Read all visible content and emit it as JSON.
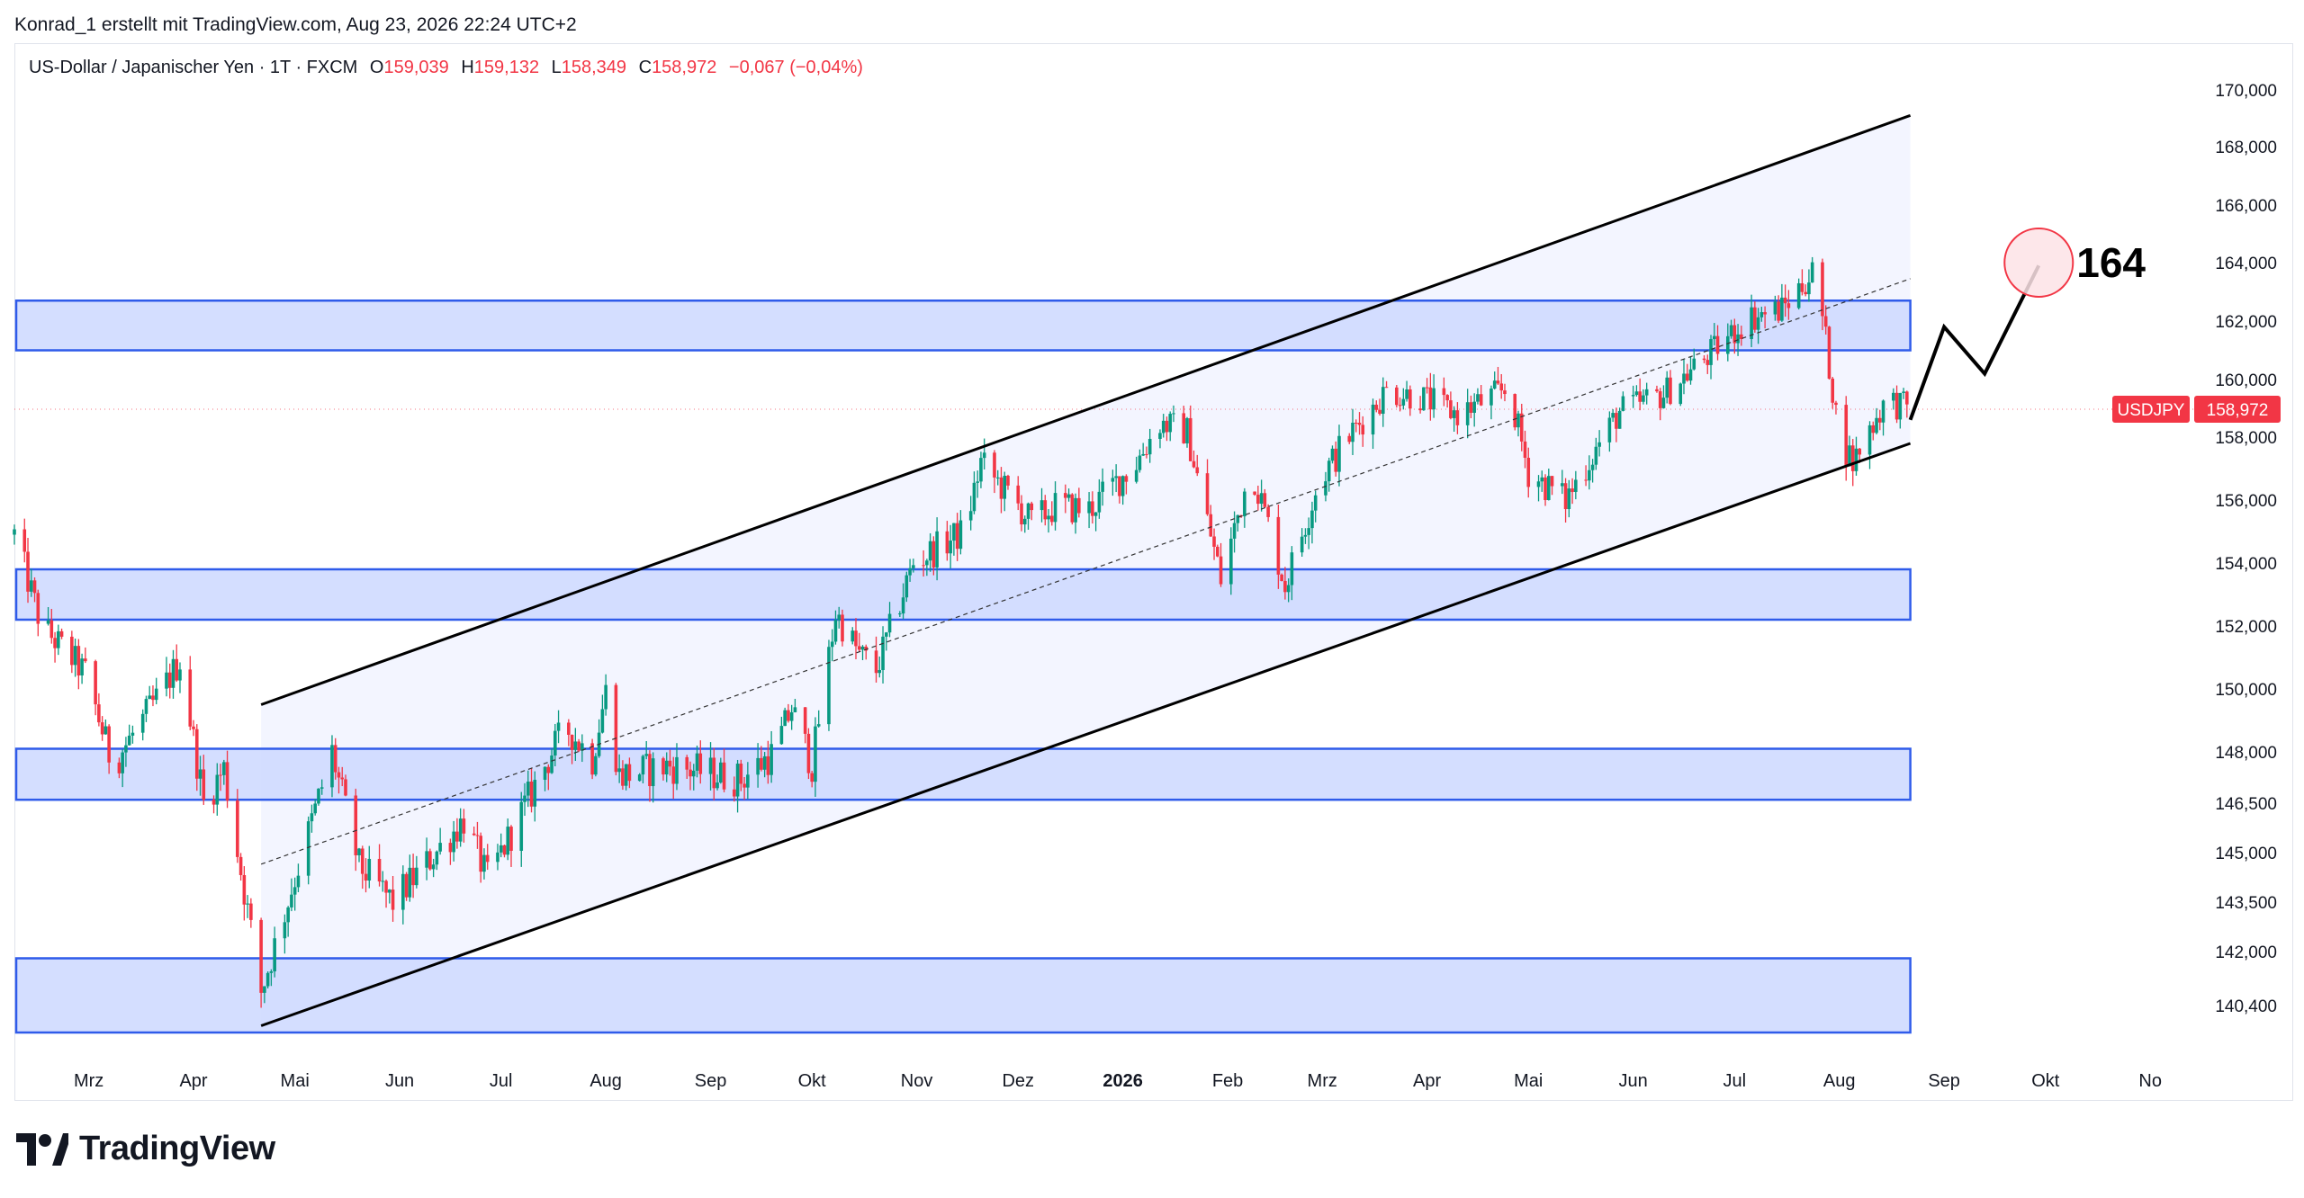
{
  "header": {
    "byline": "Konrad_1 erstellt mit TradingView.com, Aug 23, 2026 22:24 UTC+2"
  },
  "legend": {
    "symbol": "US-Dollar / Japanischer Yen · 1T · FXCM",
    "open_label": "O",
    "open": "159,039",
    "high_label": "H",
    "high": "159,132",
    "low_label": "L",
    "low": "158,349",
    "close_label": "C",
    "close": "158,972",
    "change": "−0,067 (−0,04%)"
  },
  "brand": {
    "name": "TradingView"
  },
  "colors": {
    "up": "#089981",
    "down": "#f23645",
    "zone_fill": "#cdd8ff",
    "zone_border": "#2f5bea",
    "channel_fill": "#f3f5ff",
    "price_tag": "#f23645"
  },
  "chart_data": {
    "type": "candlestick",
    "symbol": "USDJPY",
    "last_price": "158,972",
    "y_ticks": [
      "170,000",
      "168,000",
      "166,000",
      "164,000",
      "162,000",
      "160,000",
      "158,000",
      "156,000",
      "154,000",
      "152,000",
      "150,000",
      "148,000",
      "146,500",
      "145,000",
      "143,500",
      "142,000",
      "140,400"
    ],
    "x_ticks": [
      "Mrz",
      "Apr",
      "Mai",
      "Jun",
      "Jul",
      "Aug",
      "Sep",
      "Okt",
      "Nov",
      "Dez",
      "2026",
      "Feb",
      "Mrz",
      "Apr",
      "Mai",
      "Jun",
      "Jul",
      "Aug",
      "Sep",
      "Okt",
      "No"
    ],
    "x_range": [
      "2025-02-07",
      "2026-11-14"
    ],
    "price_path": [
      [
        "2025-02-07",
        154.9
      ],
      [
        "2025-02-15",
        152.0
      ],
      [
        "2025-02-28",
        150.5
      ],
      [
        "2025-03-08",
        147.6
      ],
      [
        "2025-03-20",
        149.5
      ],
      [
        "2025-03-28",
        150.9
      ],
      [
        "2025-04-04",
        146.5
      ],
      [
        "2025-04-10",
        147.5
      ],
      [
        "2025-04-21",
        140.8
      ],
      [
        "2025-04-28",
        143.2
      ],
      [
        "2025-05-12",
        148.0
      ],
      [
        "2025-05-20",
        144.6
      ],
      [
        "2025-05-30",
        143.5
      ],
      [
        "2025-06-10",
        144.8
      ],
      [
        "2025-06-20",
        146.0
      ],
      [
        "2025-06-27",
        144.2
      ],
      [
        "2025-07-10",
        146.8
      ],
      [
        "2025-07-20",
        148.8
      ],
      [
        "2025-07-28",
        147.8
      ],
      [
        "2025-08-01",
        149.9
      ],
      [
        "2025-08-05",
        147.3
      ],
      [
        "2025-08-20",
        147.6
      ],
      [
        "2025-09-10",
        147.2
      ],
      [
        "2025-09-20",
        148.0
      ],
      [
        "2025-09-25",
        149.4
      ],
      [
        "2025-10-01",
        147.6
      ],
      [
        "2025-10-08",
        152.4
      ],
      [
        "2025-10-15",
        151.1
      ],
      [
        "2025-10-20",
        150.6
      ],
      [
        "2025-10-31",
        154.0
      ],
      [
        "2025-11-15",
        155.0
      ],
      [
        "2025-11-20",
        157.2
      ],
      [
        "2025-12-05",
        155.3
      ],
      [
        "2025-12-12",
        155.8
      ],
      [
        "2025-12-22",
        155.7
      ],
      [
        "2026-01-05",
        157.2
      ],
      [
        "2026-01-12",
        158.5
      ],
      [
        "2026-01-20",
        158.2
      ],
      [
        "2026-01-25",
        155.8
      ],
      [
        "2026-01-30",
        153.5
      ],
      [
        "2026-02-08",
        157.1
      ],
      [
        "2026-02-18",
        153.3
      ],
      [
        "2026-02-28",
        156.6
      ],
      [
        "2026-03-10",
        158.2
      ],
      [
        "2026-03-20",
        159.6
      ],
      [
        "2026-03-30",
        159.4
      ],
      [
        "2026-04-10",
        158.8
      ],
      [
        "2026-04-25",
        159.7
      ],
      [
        "2026-05-01",
        156.9
      ],
      [
        "2026-05-12",
        156.0
      ],
      [
        "2026-05-28",
        158.9
      ],
      [
        "2026-06-10",
        159.5
      ],
      [
        "2026-06-25",
        161.0
      ],
      [
        "2026-07-05",
        162.1
      ],
      [
        "2026-07-15",
        162.4
      ],
      [
        "2026-07-25",
        163.8
      ],
      [
        "2026-08-01",
        158.0
      ],
      [
        "2026-08-05",
        157.2
      ],
      [
        "2026-08-10",
        158.3
      ],
      [
        "2026-08-15",
        159.3
      ],
      [
        "2026-08-22",
        158.97
      ]
    ],
    "zones": [
      {
        "from": 161.0,
        "to": 162.7
      },
      {
        "from": 152.2,
        "to": 153.8
      },
      {
        "from": 146.6,
        "to": 148.1
      },
      {
        "from": 139.6,
        "to": 141.8
      }
    ],
    "channel": {
      "upper": [
        [
          "2025-04-21",
          149.5
        ],
        [
          "2026-08-22",
          169.1
        ]
      ],
      "lower": [
        [
          "2025-04-21",
          139.8
        ],
        [
          "2026-08-22",
          157.8
        ]
      ],
      "mid": [
        [
          "2025-04-21",
          144.65
        ],
        [
          "2026-08-22",
          163.45
        ]
      ]
    },
    "forecast_path": [
      [
        "2026-08-22",
        158.6
      ],
      [
        "2026-09-01",
        161.8
      ],
      [
        "2026-09-13",
        160.2
      ],
      [
        "2026-09-29",
        163.9
      ]
    ],
    "target": {
      "date": "2026-09-29",
      "value": 164,
      "label": "164"
    }
  }
}
